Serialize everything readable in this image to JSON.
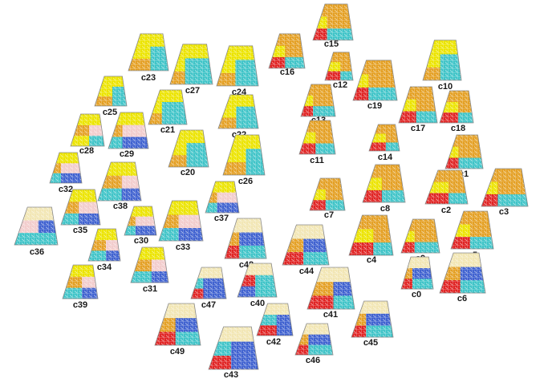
{
  "nodes": [
    {
      "label": "c15"
    },
    {
      "label": "c16"
    },
    {
      "label": "c23"
    },
    {
      "label": "c27"
    },
    {
      "label": "c24"
    },
    {
      "label": "c12"
    },
    {
      "label": "c19"
    },
    {
      "label": "c10"
    },
    {
      "label": "c25"
    },
    {
      "label": "c13"
    },
    {
      "label": "c17"
    },
    {
      "label": "c18"
    },
    {
      "label": "c21"
    },
    {
      "label": "c22"
    },
    {
      "label": "c28"
    },
    {
      "label": "c29"
    },
    {
      "label": "c11"
    },
    {
      "label": "c14"
    },
    {
      "label": "c1"
    },
    {
      "label": "c20"
    },
    {
      "label": "c26"
    },
    {
      "label": "c32"
    },
    {
      "label": "c8"
    },
    {
      "label": "c2"
    },
    {
      "label": "c3"
    },
    {
      "label": "c7"
    },
    {
      "label": "c38"
    },
    {
      "label": "c37"
    },
    {
      "label": "c35"
    },
    {
      "label": "c36"
    },
    {
      "label": "c30"
    },
    {
      "label": "c33"
    },
    {
      "label": "c4"
    },
    {
      "label": "c9"
    },
    {
      "label": "c5"
    },
    {
      "label": "c34"
    },
    {
      "label": "c48"
    },
    {
      "label": "c44"
    },
    {
      "label": "c31"
    },
    {
      "label": "c0"
    },
    {
      "label": "c6"
    },
    {
      "label": "c39"
    },
    {
      "label": "c47"
    },
    {
      "label": "c40"
    },
    {
      "label": "c41"
    },
    {
      "label": "c45"
    },
    {
      "label": "c49"
    },
    {
      "label": "c42"
    },
    {
      "label": "c46"
    },
    {
      "label": "c43"
    }
  ]
}
